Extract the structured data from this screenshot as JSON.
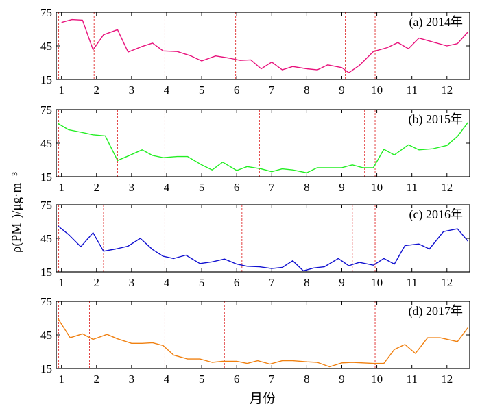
{
  "chart_data": [
    {
      "type": "line",
      "label": "(a) 2014年",
      "color": "#e8127c",
      "ylim": [
        15,
        75
      ],
      "yticks": [
        15,
        45,
        75
      ],
      "xlim": [
        0.85,
        12.65
      ],
      "xticks": [
        1,
        2,
        3,
        4,
        5,
        6,
        7,
        8,
        9,
        10,
        11,
        12
      ],
      "x": [
        1.0,
        1.3,
        1.6,
        1.9,
        2.2,
        2.6,
        2.9,
        3.3,
        3.6,
        3.9,
        4.3,
        4.7,
        5.0,
        5.4,
        5.8,
        6.1,
        6.4,
        6.7,
        7.0,
        7.3,
        7.6,
        8.0,
        8.3,
        8.6,
        9.0,
        9.2,
        9.5,
        9.9,
        10.3,
        10.6,
        10.9,
        11.2,
        11.6,
        12.0,
        12.3,
        12.6
      ],
      "y": [
        66,
        68.5,
        68,
        41.5,
        55,
        59.5,
        39.5,
        44.5,
        47.5,
        40.5,
        40,
        36,
        31.5,
        36,
        34,
        32,
        32.5,
        24.5,
        30.5,
        23.5,
        26.5,
        24.5,
        23.5,
        28,
        25.5,
        21,
        27.5,
        40,
        43.5,
        48,
        42.5,
        52,
        48.5,
        45,
        47,
        57.5
      ],
      "vlines": [
        0.92,
        1.93,
        3.95,
        4.95,
        5.97,
        9.1,
        9.95
      ]
    },
    {
      "type": "line",
      "label": "(b) 2015年",
      "color": "#22ee22",
      "ylim": [
        15,
        75
      ],
      "yticks": [
        15,
        45,
        75
      ],
      "xlim": [
        0.85,
        12.65
      ],
      "xticks": [
        1,
        2,
        3,
        4,
        5,
        6,
        7,
        8,
        9,
        10,
        11,
        12
      ],
      "x": [
        0.9,
        1.2,
        1.6,
        1.9,
        2.25,
        2.6,
        2.9,
        3.3,
        3.6,
        3.9,
        4.3,
        4.6,
        5.0,
        5.3,
        5.6,
        6.0,
        6.3,
        6.7,
        7.0,
        7.3,
        7.6,
        8.0,
        8.3,
        8.6,
        9.0,
        9.3,
        9.6,
        9.9,
        10.2,
        10.5,
        10.9,
        11.2,
        11.6,
        12.0,
        12.3,
        12.6
      ],
      "y": [
        62.5,
        57,
        54.5,
        52.5,
        51.5,
        29.5,
        33.5,
        39,
        34,
        32,
        33,
        33,
        25.5,
        21,
        28,
        20.5,
        24,
        22,
        19.5,
        22,
        21,
        18.5,
        23,
        23,
        23,
        25.5,
        23,
        23,
        39.5,
        34.5,
        43.5,
        39,
        40,
        43,
        51,
        63.5
      ],
      "vlines": [
        0.92,
        2.6,
        3.95,
        4.95,
        6.65,
        9.65,
        9.95
      ]
    },
    {
      "type": "line",
      "label": "(c) 2016年",
      "color": "#1010d0",
      "ylim": [
        15,
        75
      ],
      "yticks": [
        15,
        45,
        75
      ],
      "xlim": [
        0.85,
        12.65
      ],
      "xticks": [
        1,
        2,
        3,
        4,
        5,
        6,
        7,
        8,
        9,
        10,
        11,
        12
      ],
      "x": [
        0.9,
        1.2,
        1.55,
        1.9,
        2.2,
        2.55,
        2.9,
        3.25,
        3.6,
        3.9,
        4.2,
        4.55,
        4.95,
        5.3,
        5.65,
        6.0,
        6.3,
        6.65,
        7.0,
        7.3,
        7.6,
        7.9,
        8.2,
        8.5,
        8.9,
        9.2,
        9.5,
        9.9,
        10.2,
        10.5,
        10.8,
        11.2,
        11.5,
        11.9,
        12.3,
        12.6
      ],
      "y": [
        56,
        48.5,
        37.5,
        50,
        33.5,
        35.5,
        38,
        45,
        35,
        29,
        27,
        30,
        22.5,
        24,
        26.5,
        22,
        20,
        19.5,
        18,
        19,
        25,
        16,
        18.5,
        19.5,
        27,
        20.5,
        23.5,
        21,
        27,
        22,
        38.5,
        40,
        35.5,
        51,
        53.5,
        42.5
      ],
      "vlines": [
        0.92,
        2.2,
        3.95,
        4.95,
        6.15,
        9.3,
        9.95
      ]
    },
    {
      "type": "line",
      "label": "(d) 2017年",
      "color": "#f08010",
      "ylim": [
        15,
        75
      ],
      "yticks": [
        15,
        45,
        75
      ],
      "xlim": [
        0.85,
        12.65
      ],
      "xticks": [
        1,
        2,
        3,
        4,
        5,
        6,
        7,
        8,
        9,
        10,
        11,
        12
      ],
      "x": [
        0.9,
        1.25,
        1.6,
        1.9,
        2.3,
        2.6,
        3.0,
        3.3,
        3.6,
        3.9,
        4.2,
        4.6,
        4.95,
        5.3,
        5.6,
        6.0,
        6.3,
        6.6,
        6.95,
        7.3,
        7.6,
        8.0,
        8.3,
        8.65,
        9.0,
        9.3,
        9.6,
        9.9,
        10.2,
        10.5,
        10.8,
        11.1,
        11.45,
        11.8,
        12.3,
        12.6
      ],
      "y": [
        59.5,
        42.5,
        46,
        41,
        45.5,
        41.5,
        37.5,
        37.5,
        38,
        35.5,
        27,
        23.5,
        23.5,
        20.5,
        21.5,
        21.5,
        19.5,
        22,
        19,
        22,
        22,
        21,
        20.5,
        16.5,
        20,
        20.5,
        20,
        19.5,
        19.5,
        32,
        36.5,
        28.5,
        42.5,
        42.5,
        39,
        51.5
      ],
      "vlines": [
        0.92,
        1.8,
        3.95,
        4.95,
        5.65,
        9.95
      ]
    }
  ],
  "axes": {
    "ylabel": "ρ(PM₁)/μg·m⁻³",
    "xlabel": "月份"
  }
}
